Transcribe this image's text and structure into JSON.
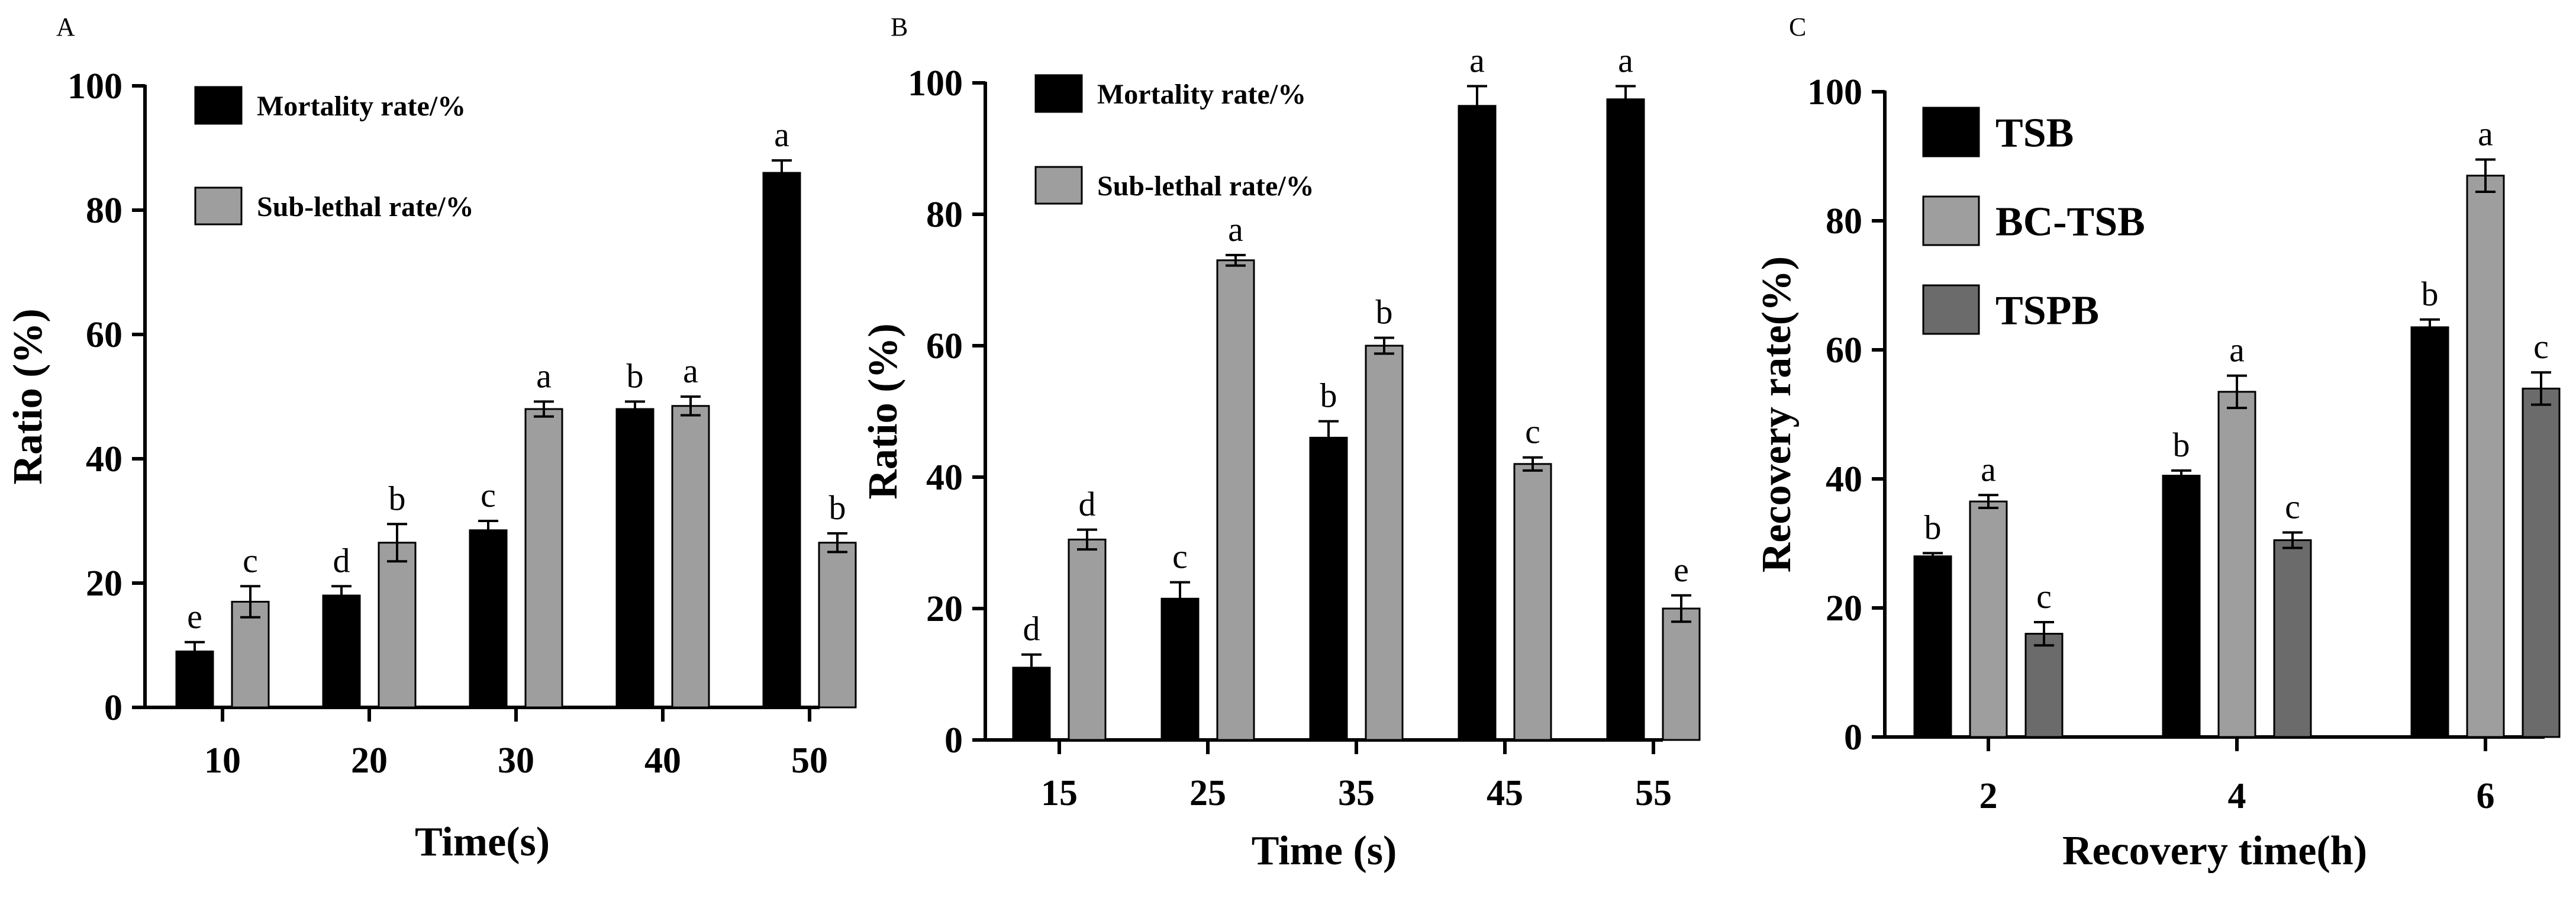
{
  "chart_data": [
    {
      "panel": "A",
      "type": "bar",
      "categories": [
        "10",
        "20",
        "30",
        "40",
        "50"
      ],
      "xlabel": "Time(s)",
      "ylabel": "Ratio (%)",
      "ylim": [
        0,
        100
      ],
      "yticks": [
        0,
        20,
        40,
        60,
        80,
        100
      ],
      "legend_position": "top-left",
      "series": [
        {
          "name": "Mortality rate/%",
          "color": "#000000",
          "values": [
            9,
            18,
            28.5,
            48,
            86
          ],
          "errors": [
            1.5,
            1.5,
            1.5,
            1.2,
            2
          ],
          "letters": [
            "e",
            "d",
            "c",
            "b",
            "a"
          ]
        },
        {
          "name": "Sub-lethal rate/%",
          "color": "#9e9e9e",
          "values": [
            17,
            26.5,
            48,
            48.5,
            26.5
          ],
          "errors": [
            2.5,
            3,
            1.2,
            1.5,
            1.5
          ],
          "letters": [
            "c",
            "b",
            "a",
            "a",
            "b"
          ]
        }
      ]
    },
    {
      "panel": "B",
      "type": "bar",
      "categories": [
        "15",
        "25",
        "35",
        "45",
        "55"
      ],
      "xlabel": "Time (s)",
      "ylabel": "Ratio (%)",
      "ylim": [
        0,
        100
      ],
      "yticks": [
        0,
        20,
        40,
        60,
        80,
        100
      ],
      "legend_position": "top-left",
      "series": [
        {
          "name": "Mortality rate/%",
          "color": "#000000",
          "values": [
            11,
            21.5,
            46,
            96.5,
            97.5
          ],
          "errors": [
            2,
            2.5,
            2.5,
            3,
            2
          ],
          "letters": [
            "d",
            "c",
            "b",
            "a",
            "a"
          ]
        },
        {
          "name": "Sub-lethal rate/%",
          "color": "#9e9e9e",
          "values": [
            30.5,
            73,
            60,
            42,
            20
          ],
          "errors": [
            1.5,
            0.8,
            1.2,
            1,
            2
          ],
          "letters": [
            "d",
            "a",
            "b",
            "c",
            "e"
          ]
        }
      ]
    },
    {
      "panel": "C",
      "type": "bar",
      "categories": [
        "2",
        "4",
        "6"
      ],
      "xlabel": "Recovery time(h)",
      "ylabel": "Recovery rate(%)",
      "ylim": [
        0,
        100
      ],
      "yticks": [
        0,
        20,
        40,
        60,
        80,
        100
      ],
      "legend_position": "top-left",
      "series": [
        {
          "name": "TSB",
          "color": "#000000",
          "values": [
            28,
            40.5,
            63.5
          ],
          "errors": [
            0.5,
            0.8,
            1.2
          ],
          "letters": [
            "b",
            "b",
            "b"
          ]
        },
        {
          "name": "BC-TSB",
          "color": "#9e9e9e",
          "values": [
            36.5,
            53.5,
            87
          ],
          "errors": [
            1,
            2.5,
            2.5
          ],
          "letters": [
            "a",
            "a",
            "a"
          ]
        },
        {
          "name": "TSPB",
          "color": "#6b6b6b",
          "values": [
            16,
            30.5,
            54
          ],
          "errors": [
            1.8,
            1.2,
            2.5
          ],
          "letters": [
            "c",
            "c",
            "c"
          ]
        }
      ]
    }
  ]
}
